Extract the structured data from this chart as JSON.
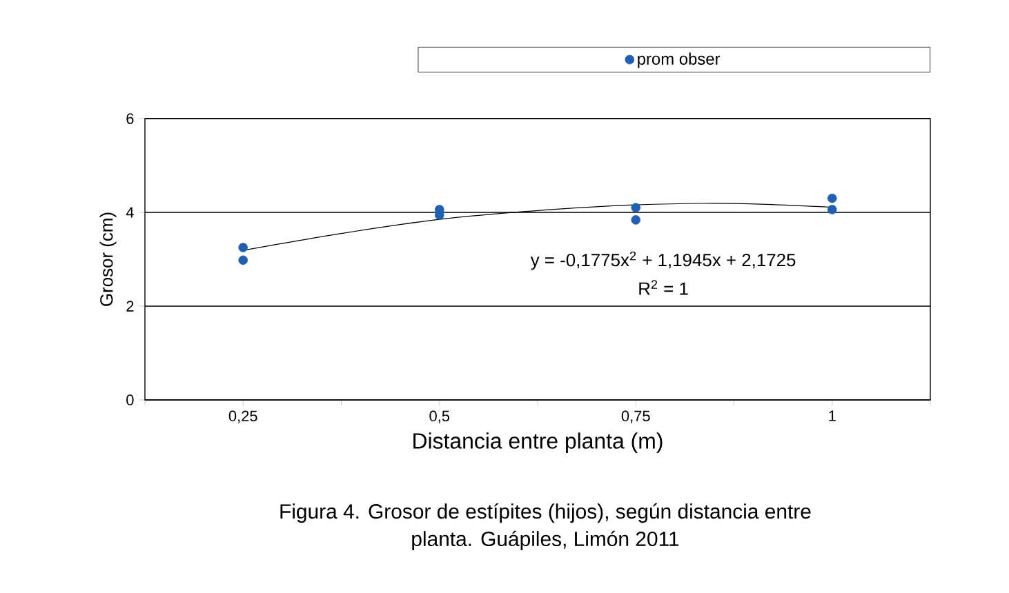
{
  "chart_data": {
    "type": "scatter",
    "xlabel": "Distancia entre planta (m)",
    "ylabel": "Grosor (cm)",
    "xlim": [
      0.125,
      1.125
    ],
    "xticks": [
      {
        "value": 0.25,
        "label": "0,25"
      },
      {
        "value": 0.5,
        "label": "0,5"
      },
      {
        "value": 0.75,
        "label": "0,75"
      },
      {
        "value": 1,
        "label": "1"
      },
      {
        "value": 0.125,
        "label": null
      },
      {
        "value": 0.375,
        "label": null
      },
      {
        "value": 0.625,
        "label": null
      },
      {
        "value": 0.875,
        "label": null
      },
      {
        "value": 1.125,
        "label": null
      }
    ],
    "ylim": [
      0,
      6
    ],
    "yticks": [
      0,
      2,
      4,
      6
    ],
    "grid": "y",
    "legend": "top",
    "marker": "circle",
    "series": [
      {
        "name": "prom obser",
        "color": "#1f5fb4",
        "x": [
          0.25,
          0.25,
          0.5,
          0.5,
          0.75,
          0.75,
          1,
          1
        ],
        "values": [
          3.25,
          2.98,
          4.06,
          3.94,
          4.1,
          3.84,
          4.3,
          4.06
        ]
      },
      {
        "type": "line",
        "color": "#000000",
        "marker": "none",
        "x": [
          0.25,
          0.375,
          0.5,
          0.625,
          0.75,
          0.875,
          1
        ],
        "values": [
          3.19,
          3.55,
          3.85,
          4.04,
          4.16,
          4.19,
          4.11
        ]
      }
    ],
    "annotations": [
      "y = -0,1775x$^{2}$ + 1,1945x + 2,1725",
      "R$^{2}$ = 1",
      "Figura 4. Grosor de estípites (hijos), según distancia entre planta. Guápiles, Limón 2011"
    ]
  }
}
